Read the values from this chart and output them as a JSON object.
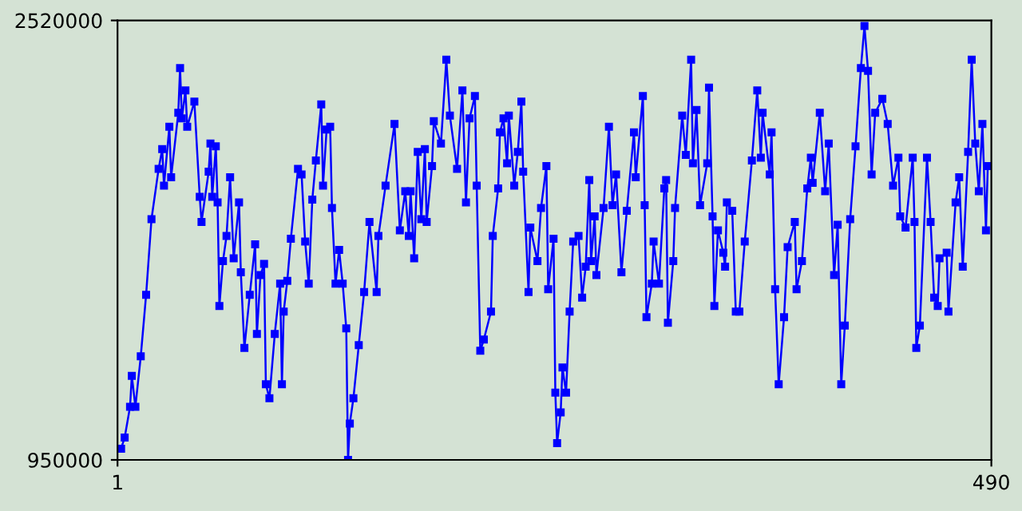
{
  "chart_data": {
    "type": "line",
    "marker": "square",
    "line_style": "solid",
    "grid": false,
    "xlim": [
      1,
      490
    ],
    "ylim": [
      950000,
      2520000
    ],
    "xticks": [
      1,
      490
    ],
    "yticks": [
      950000,
      2520000
    ],
    "series": [
      {
        "color": "#0000ff",
        "x": [
          3,
          5,
          8,
          9,
          11,
          14,
          17,
          20,
          24,
          26,
          27,
          30,
          31,
          35,
          36,
          37,
          39,
          40,
          44,
          47,
          48,
          52,
          53,
          54,
          56,
          57,
          58,
          60,
          62,
          64,
          66,
          69,
          70,
          72,
          75,
          78,
          79,
          81,
          83,
          84,
          86,
          89,
          92,
          93,
          94,
          96,
          98,
          102,
          104,
          106,
          108,
          110,
          112,
          115,
          116,
          118,
          120,
          121,
          123,
          125,
          127,
          129,
          130,
          131,
          133,
          136,
          139,
          142,
          146,
          147,
          151,
          156,
          159,
          162,
          164,
          165,
          167,
          169,
          171,
          173,
          174,
          177,
          178,
          182,
          185,
          187,
          191,
          194,
          196,
          198,
          201,
          202,
          204,
          206,
          210,
          211,
          214,
          215,
          217,
          219,
          220,
          223,
          225,
          227,
          228,
          231,
          232,
          236,
          238,
          241,
          242,
          245,
          246,
          247,
          249,
          250,
          252,
          254,
          256,
          259,
          261,
          263,
          265,
          266,
          268,
          269,
          273,
          276,
          278,
          280,
          283,
          286,
          290,
          291,
          295,
          296,
          297,
          300,
          301,
          304,
          307,
          308,
          309,
          312,
          313,
          317,
          319,
          322,
          323,
          325,
          327,
          331,
          332,
          334,
          335,
          337,
          340,
          341,
          342,
          345,
          347,
          349,
          352,
          356,
          359,
          361,
          362,
          366,
          367,
          369,
          371,
          374,
          376,
          380,
          381,
          384,
          387,
          389,
          390,
          394,
          397,
          399,
          402,
          404,
          406,
          408,
          411,
          414,
          417,
          419,
          421,
          423,
          425,
          429,
          432,
          435,
          438,
          439,
          442,
          446,
          447,
          448,
          450,
          454,
          456,
          458,
          460,
          461,
          465,
          466,
          470,
          472,
          474,
          477,
          479,
          481,
          483,
          485,
          487,
          488,
          490
        ],
        "values": [
          990000,
          1030000,
          1140000,
          1250000,
          1140000,
          1320000,
          1540000,
          1810000,
          1990000,
          2060000,
          1930000,
          2140000,
          1960000,
          2190000,
          2350000,
          2170000,
          2270000,
          2140000,
          2230000,
          1890000,
          1800000,
          1980000,
          2080000,
          1890000,
          2070000,
          1870000,
          1500000,
          1660000,
          1750000,
          1960000,
          1670000,
          1870000,
          1620000,
          1350000,
          1540000,
          1720000,
          1400000,
          1610000,
          1650000,
          1220000,
          1170000,
          1400000,
          1580000,
          1220000,
          1480000,
          1590000,
          1740000,
          1990000,
          1970000,
          1730000,
          1580000,
          1880000,
          2020000,
          2220000,
          1930000,
          2130000,
          2140000,
          1850000,
          1580000,
          1700000,
          1580000,
          1420000,
          950000,
          1080000,
          1170000,
          1360000,
          1550000,
          1800000,
          1550000,
          1750000,
          1930000,
          2150000,
          1770000,
          1910000,
          1750000,
          1910000,
          1670000,
          2050000,
          1810000,
          2060000,
          1800000,
          2000000,
          2160000,
          2080000,
          2380000,
          2180000,
          1990000,
          2270000,
          1870000,
          2170000,
          2250000,
          1930000,
          1340000,
          1380000,
          1480000,
          1750000,
          1920000,
          2120000,
          2170000,
          2010000,
          2180000,
          1930000,
          2050000,
          2230000,
          1980000,
          1550000,
          1780000,
          1660000,
          1850000,
          2000000,
          1560000,
          1740000,
          1190000,
          1010000,
          1120000,
          1280000,
          1190000,
          1480000,
          1730000,
          1750000,
          1530000,
          1640000,
          1950000,
          1660000,
          1820000,
          1610000,
          1850000,
          2140000,
          1860000,
          1970000,
          1620000,
          1840000,
          2120000,
          1960000,
          2250000,
          1860000,
          1460000,
          1580000,
          1730000,
          1580000,
          1920000,
          1950000,
          1440000,
          1660000,
          1850000,
          2180000,
          2040000,
          2380000,
          2010000,
          2200000,
          1860000,
          2010000,
          2280000,
          1820000,
          1500000,
          1770000,
          1690000,
          1640000,
          1870000,
          1840000,
          1480000,
          1480000,
          1730000,
          2020000,
          2270000,
          2030000,
          2190000,
          1970000,
          2120000,
          1560000,
          1220000,
          1460000,
          1710000,
          1800000,
          1560000,
          1660000,
          1920000,
          2030000,
          1940000,
          2190000,
          1910000,
          2080000,
          1610000,
          1790000,
          1220000,
          1430000,
          1810000,
          2070000,
          2350000,
          2500000,
          2340000,
          1970000,
          2190000,
          2240000,
          2150000,
          1930000,
          2030000,
          1820000,
          1780000,
          2030000,
          1800000,
          1350000,
          1430000,
          2030000,
          1800000,
          1530000,
          1500000,
          1670000,
          1690000,
          1480000,
          1870000,
          1960000,
          1640000,
          2050000,
          2380000,
          2080000,
          1910000,
          2150000,
          1770000,
          2000000,
          2000000
        ]
      }
    ]
  }
}
